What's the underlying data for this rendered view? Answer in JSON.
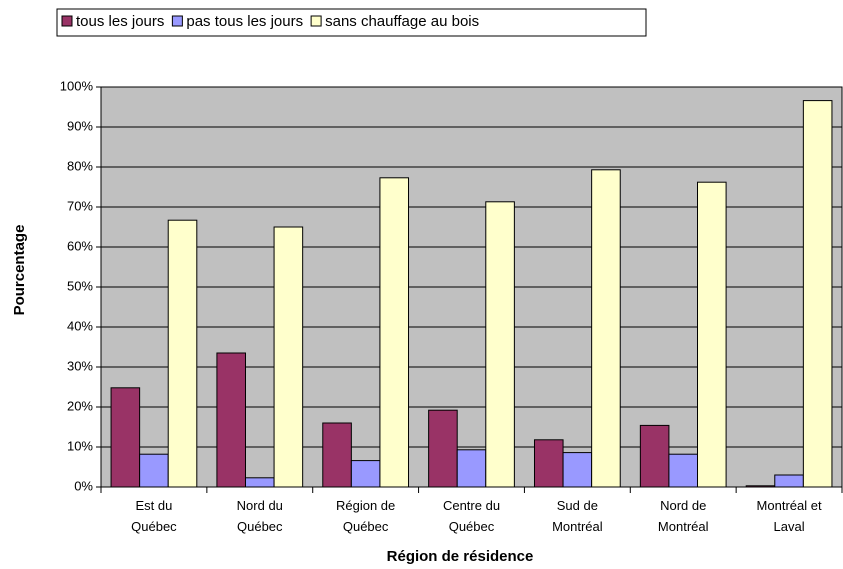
{
  "chart_data": {
    "type": "bar",
    "y_label": "Pourcentage",
    "x_label": "Région de résidence",
    "categories": [
      [
        "Est du",
        "Québec"
      ],
      [
        "Nord du",
        "Québec"
      ],
      [
        "Région de",
        "Québec"
      ],
      [
        "Centre du",
        "Québec"
      ],
      [
        "Sud de",
        "Montréal"
      ],
      [
        "Nord de",
        "Montréal"
      ],
      [
        "Montréal et",
        "Laval"
      ]
    ],
    "series": [
      {
        "name": "tous les jours",
        "color": "#993366",
        "values": [
          24.8,
          33.5,
          16.0,
          19.2,
          11.8,
          15.4,
          0.3
        ]
      },
      {
        "name": "pas tous les jours",
        "color": "#9999ff",
        "values": [
          8.2,
          2.3,
          6.6,
          9.3,
          8.6,
          8.2,
          3.0
        ]
      },
      {
        "name": "sans chauffage au bois",
        "color": "#ffffcc",
        "values": [
          66.7,
          65.0,
          77.3,
          71.3,
          79.3,
          76.2,
          96.6
        ]
      }
    ],
    "ylim": [
      0,
      100
    ],
    "yticks": [
      {
        "value": 0,
        "label": "0%"
      },
      {
        "value": 10,
        "label": "10%"
      },
      {
        "value": 20,
        "label": "20%"
      },
      {
        "value": 30,
        "label": "30%"
      },
      {
        "value": 40,
        "label": "40%"
      },
      {
        "value": 50,
        "label": "50%"
      },
      {
        "value": 60,
        "label": "60%"
      },
      {
        "value": 70,
        "label": "70%"
      },
      {
        "value": 80,
        "label": "80%"
      },
      {
        "value": 90,
        "label": "90%"
      },
      {
        "value": 100,
        "label": "100%"
      }
    ],
    "grid": true,
    "plot_background": "#c0c0c0"
  }
}
